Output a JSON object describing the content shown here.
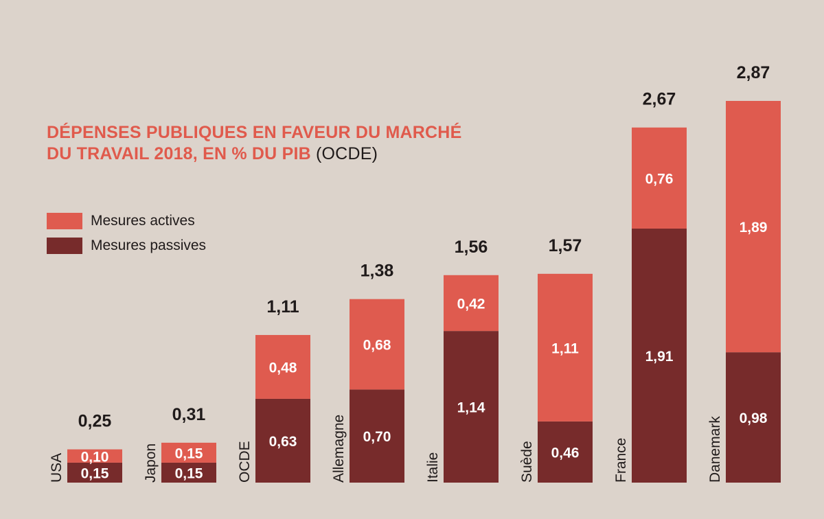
{
  "chart_data": {
    "type": "bar",
    "stacked": true,
    "title_main_line1": "DÉPENSES PUBLIQUES EN FAVEUR DU MARCHÉ",
    "title_main_line2": "DU TRAVAIL 2018, EN % DU PIB",
    "title_source": "(OCDE)",
    "categories": [
      "USA",
      "Japon",
      "OCDE",
      "Allemagne",
      "Italie",
      "Suède",
      "France",
      "Danemark"
    ],
    "series": [
      {
        "name": "Mesures passives",
        "color": "#772b2b",
        "values": [
          0.15,
          0.15,
          0.63,
          0.7,
          1.14,
          0.46,
          1.91,
          0.98
        ],
        "labels": [
          "0,15",
          "0,15",
          "0,63",
          "0,70",
          "1,14",
          "0,46",
          "1,91",
          "0,98"
        ]
      },
      {
        "name": "Mesures actives",
        "color": "#df5b4f",
        "values": [
          0.1,
          0.15,
          0.48,
          0.68,
          0.42,
          1.11,
          0.76,
          1.89
        ],
        "labels": [
          "0,10",
          "0,15",
          "0,48",
          "0,68",
          "0,42",
          "1,11",
          "0,76",
          "1,89"
        ]
      }
    ],
    "totals": [
      0.25,
      0.31,
      1.11,
      1.38,
      1.56,
      1.57,
      2.67,
      2.87
    ],
    "total_labels": [
      "0,25",
      "0,31",
      "1,11",
      "1,38",
      "1,56",
      "1,57",
      "2,67",
      "2,87"
    ],
    "ylim": [
      0,
      2.87
    ],
    "grid": false,
    "legend_position": "top-left",
    "text_color": "#1f1a1a",
    "background": "#dcd3cb"
  },
  "legend": [
    {
      "label": "Mesures actives",
      "color": "#df5b4f"
    },
    {
      "label": "Mesures passives",
      "color": "#772b2b"
    }
  ]
}
